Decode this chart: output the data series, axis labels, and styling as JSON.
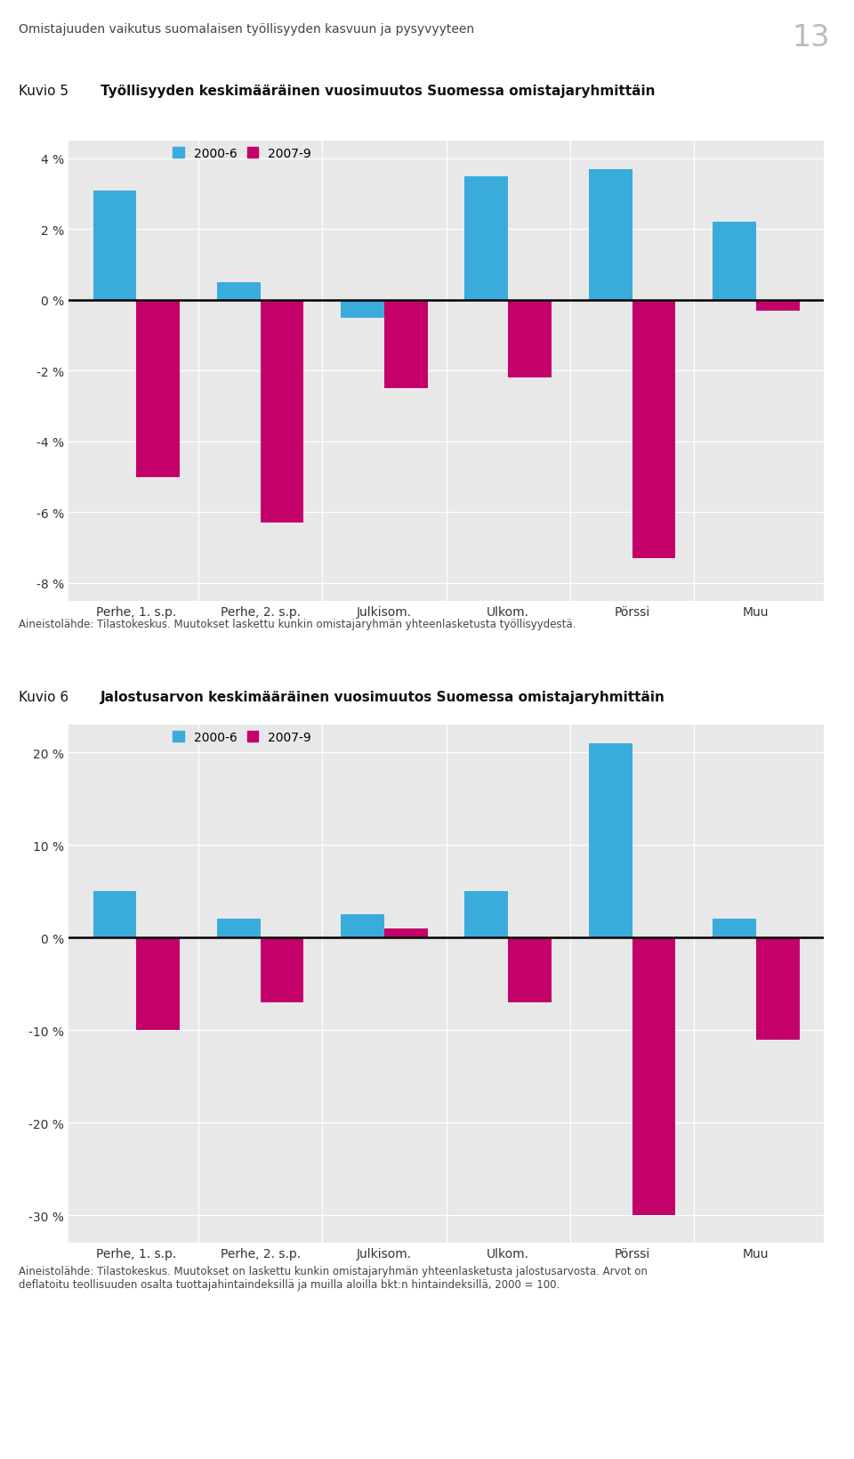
{
  "page_title": "Omistajuuden vaikutus suomalaisen työllisyyden kasvuun ja pysyvyyteen",
  "page_number": "13",
  "chart1": {
    "title_label": "Kuvio 5",
    "title_text": "Työllisyyden keskimääräinen vuosimuutos Suomessa omistajaryhmittäin",
    "categories": [
      "Perhe, 1. s.p.",
      "Perhe, 2. s.p.",
      "Julkisom.",
      "Ulkom.",
      "Pörssi",
      "Muu"
    ],
    "series1_label": "2000-6",
    "series2_label": "2007-9",
    "series1_values": [
      3.1,
      0.5,
      -0.5,
      3.5,
      3.7,
      2.2
    ],
    "series2_values": [
      -5.0,
      -6.3,
      -2.5,
      -2.2,
      -7.3,
      -0.3
    ],
    "ylim": [
      -8.5,
      4.5
    ],
    "yticks": [
      -8,
      -6,
      -4,
      -2,
      0,
      2,
      4
    ],
    "ytick_labels": [
      "-8 %",
      "-6 %",
      "-4 %",
      "-2 %",
      "0 %",
      "2 %",
      "4 %"
    ],
    "footnote": "Aineistolähde: Tilastokeskus. Muutokset laskettu kunkin omistajaryhmän yhteenlasketusta työllisyydestä."
  },
  "chart2": {
    "title_label": "Kuvio 6",
    "title_text": "Jalostusarvon keskimääräinen vuosimuutos Suomessa omistajaryhmittäin",
    "categories": [
      "Perhe, 1. s.p.",
      "Perhe, 2. s.p.",
      "Julkisom.",
      "Ulkom.",
      "Pörssi",
      "Muu"
    ],
    "series1_label": "2000-6",
    "series2_label": "2007-9",
    "series1_values": [
      5.0,
      2.0,
      2.5,
      5.0,
      21.0,
      2.0
    ],
    "series2_values": [
      -10.0,
      -7.0,
      1.0,
      -7.0,
      -30.0,
      -11.0
    ],
    "ylim": [
      -33,
      23
    ],
    "yticks": [
      -30,
      -20,
      -10,
      0,
      10,
      20
    ],
    "ytick_labels": [
      "-30 %",
      "-20 %",
      "-10 %",
      "0 %",
      "10 %",
      "20 %"
    ],
    "footnote": "Aineistolähde: Tilastokeskus. Muutokset on laskettu kunkin omistajaryhmän yhteenlasketusta jalostusarvosta. Arvot on\ndeflatoitu teollisuuden osalta tuottajahintaindeksillä ja muilla aloilla bkt:n hintaindeksillä, 2000 = 100."
  },
  "color_blue": "#3AACDC",
  "color_pink": "#C4006A",
  "bg_color": "#E8E8E8",
  "bar_width": 0.35,
  "tick_fontsize": 10,
  "legend_fontsize": 10,
  "footnote_fontsize": 8.5,
  "page_title_fontsize": 10,
  "kuvio_label_fontsize": 11
}
